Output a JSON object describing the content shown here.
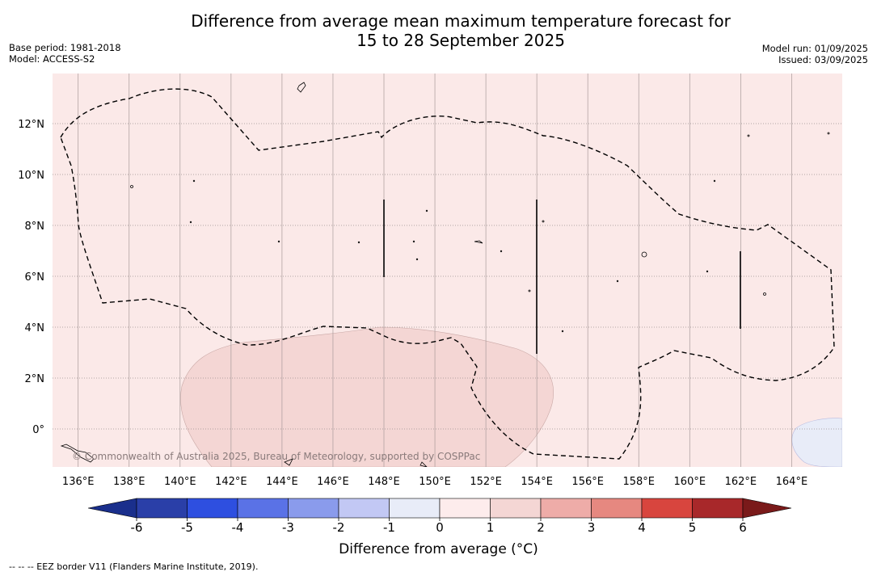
{
  "header": {
    "title_line1": "Difference from average mean maximum temperature forecast for",
    "title_line2": "15 to 28 September 2025",
    "base_period": "Base period: 1981-2018",
    "model": "Model: ACCESS-S2",
    "model_run": "Model run: 01/09/2025",
    "issued": "Issued: 03/09/2025"
  },
  "map": {
    "background_color": "#fbe9e8",
    "anomaly_1_2_color": "#f4d6d4",
    "anomaly_neg_color": "#e8ecf8",
    "lat_labels": [
      "12°N",
      "10°N",
      "8°N",
      "6°N",
      "4°N",
      "2°N",
      "0°"
    ],
    "lon_labels": [
      "136°E",
      "138°E",
      "140°E",
      "142°E",
      "144°E",
      "146°E",
      "148°E",
      "150°E",
      "152°E",
      "154°E",
      "156°E",
      "158°E",
      "160°E",
      "162°E",
      "164°E"
    ],
    "copyright": "© Commonwealth of Australia 2025, Bureau of Meteorology, supported by COSPPac"
  },
  "colorbar": {
    "labels": [
      "-6",
      "-5",
      "-4",
      "-3",
      "-2",
      "-1",
      "0",
      "1",
      "2",
      "3",
      "4",
      "5",
      "6"
    ],
    "colors": [
      "#1a2f8c",
      "#2a3fa8",
      "#2e4fe0",
      "#5a72e6",
      "#8a9bec",
      "#c2c8f4",
      "#e8ecf8",
      "#fdecec",
      "#f4d6d4",
      "#eeaca8",
      "#e68880",
      "#d8453e",
      "#a8282a",
      "#7a1a1a"
    ],
    "title": "Difference from average (°C)"
  },
  "footnote": "--  --  -- EEZ border V11 (Flanders Marine Institute, 2019)."
}
